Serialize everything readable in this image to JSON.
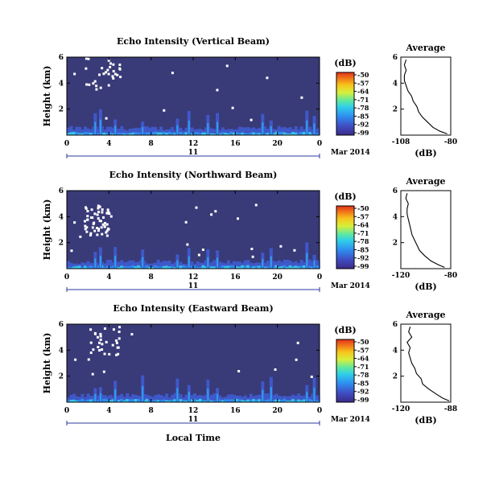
{
  "chart_data": [
    {
      "type": "heatmap",
      "title": "Echo Intensity (Vertical Beam)",
      "ylabel": "Height (km)",
      "xticks": [
        "0",
        "4",
        "8",
        "12",
        "16",
        "20",
        "0"
      ],
      "yticks": [
        "2",
        "4",
        "6"
      ],
      "ylim": [
        0,
        6
      ],
      "xlim_hours": [
        0,
        24
      ],
      "day_label": "11",
      "month_label": "Mar 2014",
      "colorbar": {
        "unit": "(dB)",
        "ticks": [
          "-50",
          "-57",
          "-64",
          "-71",
          "-78",
          "-85",
          "-92",
          "-99"
        ],
        "range": [
          -99,
          -50
        ]
      },
      "profile": {
        "title": "Average",
        "xlabel": "(dB)",
        "xticks": [
          "-108",
          "-80"
        ],
        "xlim": [
          -108,
          -80
        ],
        "yticks": [
          "2",
          "4",
          "6"
        ],
        "height": [
          0.1,
          0.3,
          0.6,
          1.0,
          1.4,
          1.8,
          2.2,
          2.6,
          3.0,
          3.4,
          3.8,
          4.2,
          4.6,
          5.0,
          5.4,
          5.8
        ],
        "db": [
          -82,
          -86,
          -90,
          -93,
          -96,
          -98,
          -99,
          -101,
          -102,
          -104,
          -105,
          -106,
          -106,
          -105,
          -106,
          -105
        ]
      }
    },
    {
      "type": "heatmap",
      "title": "Echo Intensity (Northward Beam)",
      "ylabel": "Height (km)",
      "xticks": [
        "0",
        "4",
        "8",
        "12",
        "16",
        "20",
        "0"
      ],
      "yticks": [
        "2",
        "4",
        "6"
      ],
      "ylim": [
        0,
        6
      ],
      "xlim_hours": [
        0,
        24
      ],
      "day_label": "11",
      "month_label": "Mar 2014",
      "colorbar": {
        "unit": "(dB)",
        "ticks": [
          "-50",
          "-57",
          "-64",
          "-71",
          "-78",
          "-85",
          "-92",
          "-99"
        ],
        "range": [
          -99,
          -50
        ]
      },
      "profile": {
        "title": "Average",
        "xlabel": "(dB)",
        "xticks": [
          "-120",
          "-80"
        ],
        "xlim": [
          -120,
          -80
        ],
        "yticks": [
          "2",
          "4",
          "6"
        ],
        "height": [
          0.1,
          0.3,
          0.6,
          1.0,
          1.4,
          1.8,
          2.2,
          2.6,
          3.0,
          3.4,
          3.8,
          4.2,
          4.6,
          5.0,
          5.4,
          5.8
        ],
        "db": [
          -85,
          -90,
          -96,
          -101,
          -105,
          -107,
          -109,
          -111,
          -112,
          -113,
          -114,
          -115,
          -115,
          -114,
          -116,
          -115
        ]
      }
    },
    {
      "type": "heatmap",
      "title": "Echo Intensity (Eastward Beam)",
      "ylabel": "Height (km)",
      "xticks": [
        "0",
        "4",
        "8",
        "12",
        "16",
        "20",
        "0"
      ],
      "yticks": [
        "2",
        "4",
        "6"
      ],
      "ylim": [
        0,
        6
      ],
      "xlim_hours": [
        0,
        24
      ],
      "day_label": "11",
      "month_label": "Mar 2014",
      "xlabel": "Local Time",
      "colorbar": {
        "unit": "(dB)",
        "ticks": [
          "-50",
          "-57",
          "-64",
          "-71",
          "-78",
          "-85",
          "-92",
          "-99"
        ],
        "range": [
          -99,
          -50
        ]
      },
      "profile": {
        "title": "Average",
        "xlabel": "(dB)",
        "xticks": [
          "-120",
          "-88"
        ],
        "xlim": [
          -120,
          -88
        ],
        "yticks": [
          "2",
          "4",
          "6"
        ],
        "height": [
          0.1,
          0.3,
          0.6,
          1.0,
          1.4,
          1.8,
          2.2,
          2.6,
          3.0,
          3.4,
          3.8,
          4.2,
          4.6,
          5.0,
          5.4,
          5.8
        ],
        "db": [
          -89,
          -93,
          -97,
          -102,
          -106,
          -107,
          -110,
          -111,
          -113,
          -114,
          -115,
          -114,
          -116,
          -113,
          -115,
          -114
        ]
      }
    }
  ]
}
